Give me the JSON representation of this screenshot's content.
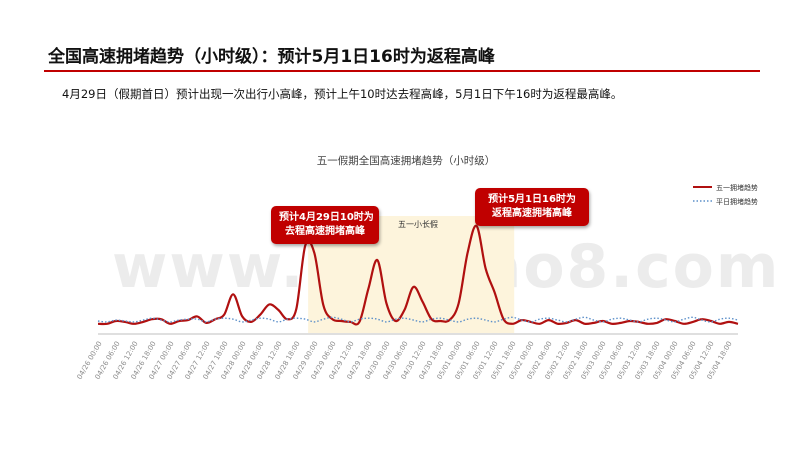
{
  "slide": {
    "title": "全国高速拥堵趋势（小时级）：预计5月1日16时为返程高峰",
    "subtitle": "4月29日（假期首日）预计出现一次出行小高峰，预计上午10时达去程高峰，5月1日下午16时为返程最高峰。",
    "watermark": "www.baogao8.com"
  },
  "colors": {
    "accent": "#c00000",
    "holiday_series": "#b01010",
    "weekday_series": "#5b8fc9",
    "holiday_band": "#fdf4dc"
  },
  "callouts": [
    {
      "line1": "预计4月29日10时为",
      "line2": "去程高速拥堵高峰"
    },
    {
      "line1": "预计5月1日16时为",
      "line2": "返程高速拥堵高峰"
    }
  ],
  "chart_data": {
    "type": "line",
    "title": "五一假期全国高速拥堵趋势（小时级）",
    "band_label": "五一小长假",
    "legend_position": "top-right",
    "grid": false,
    "x_ticks": [
      "04/26 00:00",
      "04/26 06:00",
      "04/26 12:00",
      "04/26 18:00",
      "04/27 00:00",
      "04/27 06:00",
      "04/27 12:00",
      "04/27 18:00",
      "04/28 00:00",
      "04/28 06:00",
      "04/28 12:00",
      "04/28 18:00",
      "04/29 00:00",
      "04/29 06:00",
      "04/29 12:00",
      "04/29 18:00",
      "04/30 00:00",
      "04/30 06:00",
      "04/30 12:00",
      "04/30 18:00",
      "05/01 00:00",
      "05/01 06:00",
      "05/01 12:00",
      "05/01 18:00",
      "05/02 00:00",
      "05/02 06:00",
      "05/02 12:00",
      "05/02 18:00",
      "05/03 00:00",
      "05/03 06:00",
      "05/03 12:00",
      "05/03 18:00",
      "05/04 00:00",
      "05/04 06:00",
      "05/04 12:00",
      "05/04 18:00"
    ],
    "band": {
      "start_tick": "04/28 18:00",
      "end_tick": "05/01 18:00"
    },
    "series": [
      {
        "name": "五一拥堵趋势",
        "style": "solid",
        "values": [
          1.0,
          1.0,
          1.3,
          1.2,
          1.0,
          1.2,
          1.5,
          1.5,
          1.0,
          1.3,
          1.4,
          1.8,
          1.1,
          1.5,
          2.0,
          4.2,
          1.8,
          1.2,
          2.0,
          3.1,
          2.5,
          1.5,
          2.6,
          9.5,
          8.7,
          3.0,
          1.5,
          1.3,
          1.2,
          1.2,
          4.8,
          7.9,
          3.2,
          1.3,
          2.5,
          5.0,
          3.4,
          1.5,
          1.3,
          1.4,
          3.2,
          8.7,
          11.6,
          7.0,
          4.4,
          1.5,
          1.0,
          1.4,
          1.2,
          1.0,
          1.4,
          1.0,
          1.1,
          1.4,
          1.0,
          1.1,
          1.3,
          1.0,
          1.1,
          1.3,
          1.2,
          1.0,
          1.1,
          1.5,
          1.3,
          1.0,
          1.2,
          1.5,
          1.3,
          1.0,
          1.2,
          1.0
        ]
      },
      {
        "name": "平日拥堵趋势",
        "style": "dotted",
        "values": [
          1.3,
          1.2,
          1.4,
          1.3,
          1.2,
          1.4,
          1.6,
          1.4,
          1.2,
          1.4,
          1.5,
          1.5,
          1.2,
          1.5,
          1.6,
          1.5,
          1.2,
          1.4,
          1.6,
          1.5,
          1.2,
          1.5,
          1.6,
          1.5,
          1.2,
          1.5,
          1.7,
          1.5,
          1.2,
          1.5,
          1.6,
          1.5,
          1.2,
          1.5,
          1.6,
          1.4,
          1.2,
          1.5,
          1.6,
          1.4,
          1.2,
          1.5,
          1.6,
          1.4,
          1.2,
          1.5,
          1.7,
          1.4,
          1.2,
          1.5,
          1.6,
          1.4,
          1.2,
          1.5,
          1.7,
          1.4,
          1.2,
          1.5,
          1.6,
          1.4,
          1.2,
          1.5,
          1.6,
          1.4,
          1.2,
          1.5,
          1.7,
          1.4,
          1.2,
          1.5,
          1.6,
          1.4
        ]
      }
    ]
  }
}
